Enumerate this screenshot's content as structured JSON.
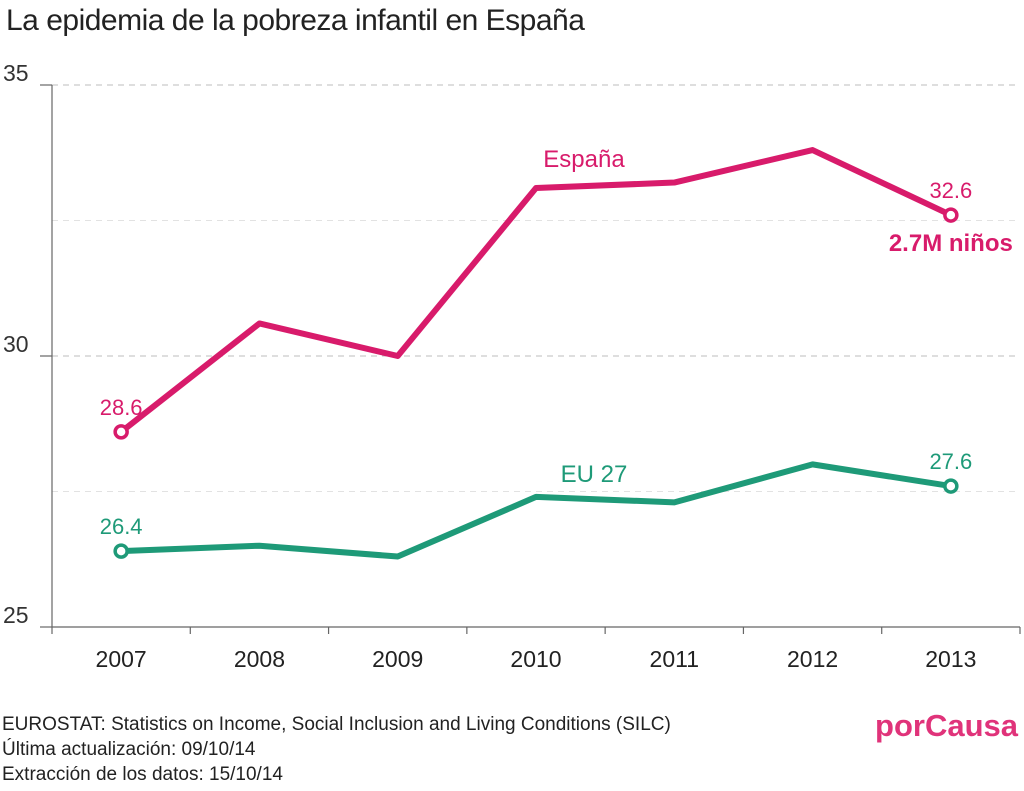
{
  "title": "La epidemia de la pobreza infantil en España",
  "chart_data": {
    "type": "line",
    "title": "La epidemia de la pobreza infantil en España",
    "xlabel": "",
    "ylabel": "",
    "categories": [
      "2007",
      "2008",
      "2009",
      "2010",
      "2011",
      "2012",
      "2013"
    ],
    "ylim": [
      25,
      35
    ],
    "yticks": [
      "25",
      "30",
      "35"
    ],
    "grid": true,
    "series": [
      {
        "name": "España",
        "color": "#d81b6b",
        "values": [
          28.6,
          30.6,
          30.0,
          33.1,
          33.2,
          33.8,
          32.6
        ],
        "start_label": "28.6",
        "end_label": "32.6",
        "end_note": "2.7M niños"
      },
      {
        "name": "EU 27",
        "color": "#1e9a78",
        "values": [
          26.4,
          26.5,
          26.3,
          27.4,
          27.3,
          28.0,
          27.6
        ],
        "start_label": "26.4",
        "end_label": "27.6"
      }
    ]
  },
  "footer": {
    "line1": "EUROSTAT: Statistics on Income, Social Inclusion and Living Conditions (SILC)",
    "line2": "Última actualización: 09/10/14",
    "line3": "Extracción de los datos: 15/10/14"
  },
  "brand": {
    "name": "porCausa",
    "color": "#e0337a"
  }
}
